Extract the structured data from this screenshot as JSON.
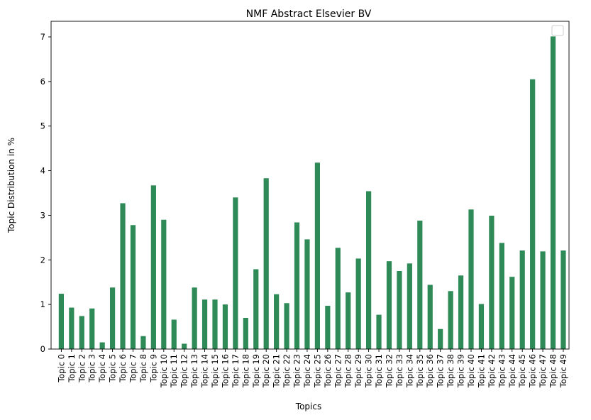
{
  "chart_data": {
    "type": "bar",
    "title": "NMF Abstract Elsevier BV",
    "xlabel": "Topics",
    "ylabel": "Topic Distribution in %",
    "ylim": [
      0,
      7.35
    ],
    "yticks": [
      0,
      1,
      2,
      3,
      4,
      5,
      6,
      7
    ],
    "legend": {
      "placement": "top-right",
      "entries": []
    },
    "grid": false,
    "bar_color": "#2e8b57",
    "categories": [
      "Topic 0",
      "Topic 1",
      "Topic 2",
      "Topic 3",
      "Topic 4",
      "Topic 5",
      "Topic 6",
      "Topic 7",
      "Topic 8",
      "Topic 9",
      "Topic 10",
      "Topic 11",
      "Topic 12",
      "Topic 13",
      "Topic 14",
      "Topic 15",
      "Topic 16",
      "Topic 17",
      "Topic 18",
      "Topic 19",
      "Topic 20",
      "Topic 21",
      "Topic 22",
      "Topic 23",
      "Topic 24",
      "Topic 25",
      "Topic 26",
      "Topic 27",
      "Topic 28",
      "Topic 29",
      "Topic 30",
      "Topic 31",
      "Topic 32",
      "Topic 33",
      "Topic 34",
      "Topic 35",
      "Topic 36",
      "Topic 37",
      "Topic 38",
      "Topic 39",
      "Topic 40",
      "Topic 41",
      "Topic 42",
      "Topic 43",
      "Topic 44",
      "Topic 45",
      "Topic 46",
      "Topic 47",
      "Topic 48",
      "Topic 49"
    ],
    "values": [
      1.24,
      0.93,
      0.74,
      0.91,
      0.15,
      1.38,
      3.27,
      2.78,
      0.29,
      3.67,
      2.9,
      0.66,
      0.12,
      1.38,
      1.11,
      1.11,
      1.0,
      3.4,
      0.7,
      1.79,
      3.83,
      1.23,
      1.03,
      2.84,
      2.46,
      4.18,
      0.97,
      2.27,
      1.27,
      2.03,
      3.54,
      0.77,
      1.97,
      1.75,
      1.92,
      2.88,
      1.44,
      0.45,
      1.3,
      1.65,
      3.13,
      1.01,
      2.99,
      2.38,
      1.62,
      2.21,
      6.05,
      2.19,
      7.01,
      2.21
    ]
  }
}
